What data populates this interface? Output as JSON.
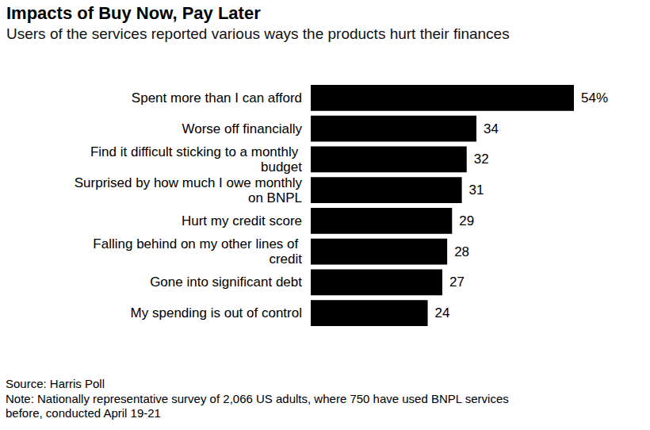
{
  "chart_data": {
    "type": "bar",
    "title": "Impacts of Buy Now, Pay Later",
    "subtitle": "Users of the services reported various ways the products hurt their finances",
    "orientation": "horizontal",
    "categories": [
      "Spent more than I can afford",
      "Worse off financially",
      "Find it difficult sticking to a monthly budget",
      "Surprised by how much I owe monthly on BNPL",
      "Hurt my credit score",
      "Falling behind on my other lines of credit",
      "Gone into significant debt",
      "My spending is out of control"
    ],
    "values": [
      54,
      34,
      32,
      31,
      29,
      28,
      27,
      24
    ],
    "value_labels": [
      "54%",
      "34",
      "32",
      "31",
      "29",
      "28",
      "27",
      "24"
    ],
    "data_labels": true,
    "color": "#000000",
    "xlim": [
      0,
      54
    ],
    "tick_labels": "y",
    "grid": false,
    "annotations": [
      "Source: Harris Poll",
      "Note: Nationally representative survey of 2,066 US adults, where 750 have used BNPL services before, conducted April 19-21"
    ]
  }
}
